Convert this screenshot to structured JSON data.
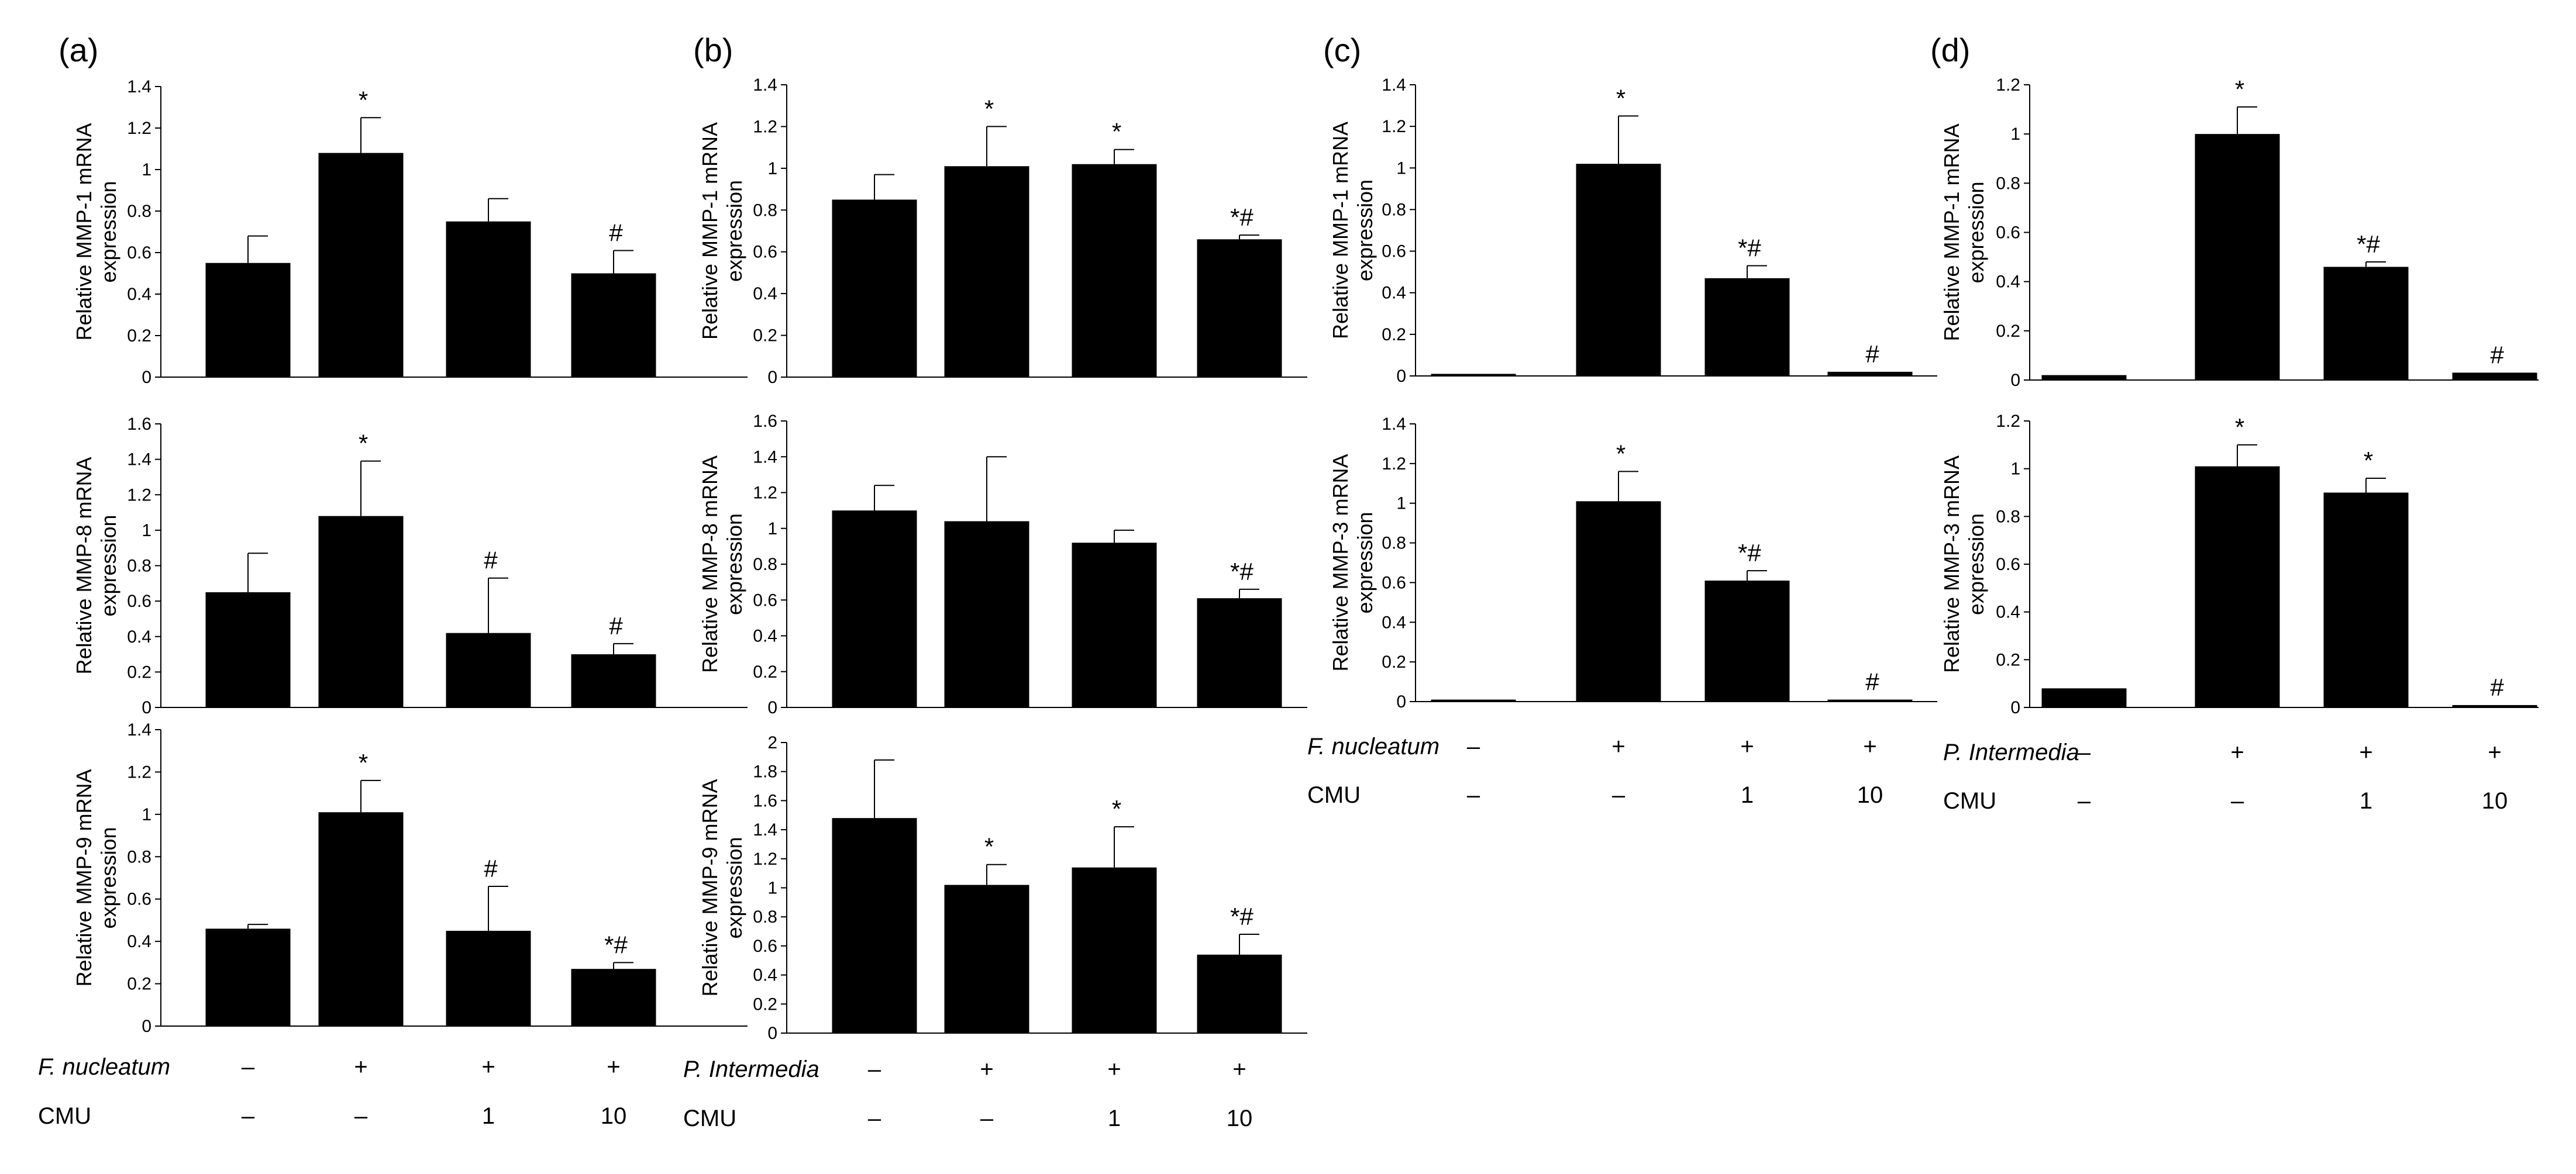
{
  "figure": {
    "panels": [
      {
        "label": "(a)",
        "treatment_label": "F. nucleatum",
        "treatment_values": [
          "–",
          "+",
          "+",
          "+"
        ],
        "cmu_label": "CMU",
        "cmu_values": [
          "–",
          "–",
          "1",
          "10"
        ]
      },
      {
        "label": "(b)",
        "treatment_label": "P. Intermedia",
        "treatment_values": [
          "–",
          "+",
          "+",
          "+"
        ],
        "cmu_label": "CMU",
        "cmu_values": [
          "–",
          "–",
          "1",
          "10"
        ]
      },
      {
        "label": "(c)",
        "treatment_label": "F. nucleatum",
        "treatment_values": [
          "–",
          "+",
          "+",
          "+"
        ],
        "cmu_label": "CMU",
        "cmu_values": [
          "–",
          "–",
          "1",
          "10"
        ]
      },
      {
        "label": "(d)",
        "treatment_label": "P. Intermedia",
        "treatment_values": [
          "–",
          "+",
          "+",
          "+"
        ],
        "cmu_label": "CMU",
        "cmu_values": [
          "–",
          "–",
          "1",
          "10"
        ]
      }
    ]
  },
  "chart_data": [
    {
      "panel": "(a)",
      "type": "bar",
      "ylabel": [
        "Relative MMP-1 mRNA",
        "expression"
      ],
      "ylim": [
        0,
        1.4
      ],
      "yticks": [
        "0",
        "0.2",
        "0.4",
        "0.6",
        "0.8",
        "1",
        "1.2",
        "1.4"
      ],
      "values": [
        0.55,
        1.08,
        0.75,
        0.5
      ],
      "errors": [
        0.13,
        0.17,
        0.11,
        0.11
      ],
      "annotations": [
        "",
        "*",
        "",
        "#"
      ]
    },
    {
      "panel": "(a)",
      "type": "bar",
      "ylabel": [
        "Relative MMP-8 mRNA",
        "expression"
      ],
      "ylim": [
        0,
        1.6
      ],
      "yticks": [
        "0",
        "0.2",
        "0.4",
        "0.6",
        "0.8",
        "1",
        "1.2",
        "1.4",
        "1.6"
      ],
      "values": [
        0.65,
        1.08,
        0.42,
        0.3
      ],
      "errors": [
        0.22,
        0.31,
        0.31,
        0.06
      ],
      "annotations": [
        "",
        "*",
        "#",
        "#"
      ]
    },
    {
      "panel": "(a)",
      "type": "bar",
      "ylabel": [
        "Relative MMP-9 mRNA",
        "expression"
      ],
      "ylim": [
        0,
        1.4
      ],
      "yticks": [
        "0",
        "0.2",
        "0.4",
        "0.6",
        "0.8",
        "1",
        "1.2",
        "1.4"
      ],
      "values": [
        0.46,
        1.01,
        0.45,
        0.27
      ],
      "errors": [
        0.02,
        0.15,
        0.21,
        0.03
      ],
      "annotations": [
        "",
        "*",
        "#",
        "*#"
      ]
    },
    {
      "panel": "(b)",
      "type": "bar",
      "ylabel": [
        "Relative MMP-1 mRNA",
        "expression"
      ],
      "ylim": [
        0,
        1.4
      ],
      "yticks": [
        "0",
        "0.2",
        "0.4",
        "0.6",
        "0.8",
        "1",
        "1.2",
        "1.4"
      ],
      "values": [
        0.85,
        1.01,
        1.02,
        0.66
      ],
      "errors": [
        0.12,
        0.19,
        0.07,
        0.02
      ],
      "annotations": [
        "",
        "*",
        "*",
        "*#"
      ]
    },
    {
      "panel": "(b)",
      "type": "bar",
      "ylabel": [
        "Relative MMP-8 mRNA",
        "expression"
      ],
      "ylim": [
        0,
        1.6
      ],
      "yticks": [
        "0",
        "0.2",
        "0.4",
        "0.6",
        "0.8",
        "1",
        "1.2",
        "1.4",
        "1.6"
      ],
      "values": [
        1.1,
        1.04,
        0.92,
        0.61
      ],
      "errors": [
        0.14,
        0.36,
        0.07,
        0.05
      ],
      "annotations": [
        "",
        "",
        "",
        "*#"
      ]
    },
    {
      "panel": "(b)",
      "type": "bar",
      "ylabel": [
        "Relative MMP-9 mRNA",
        "expression"
      ],
      "ylim": [
        0,
        2
      ],
      "yticks": [
        "0",
        "0.2",
        "0.4",
        "0.6",
        "0.8",
        "1",
        "1.2",
        "1.4",
        "1.6",
        "1.8",
        "2"
      ],
      "values": [
        1.48,
        1.02,
        1.14,
        0.54
      ],
      "errors": [
        0.4,
        0.14,
        0.28,
        0.14
      ],
      "annotations": [
        "",
        "*",
        "*",
        "*#"
      ]
    },
    {
      "panel": "(c)",
      "type": "bar",
      "ylabel": [
        "Relative MMP-1 mRNA",
        "expression"
      ],
      "ylim": [
        0,
        1.4
      ],
      "yticks": [
        "0",
        "0.2",
        "0.4",
        "0.6",
        "0.8",
        "1",
        "1.2",
        "1.4"
      ],
      "values": [
        0.01,
        1.02,
        0.47,
        0.02
      ],
      "errors": [
        0,
        0.23,
        0.06,
        0
      ],
      "annotations": [
        "",
        "*",
        "*#",
        "#"
      ]
    },
    {
      "panel": "(c)",
      "type": "bar",
      "ylabel": [
        "Relative MMP-3 mRNA",
        "expression"
      ],
      "ylim": [
        0,
        1.4
      ],
      "yticks": [
        "0",
        "0.2",
        "0.4",
        "0.6",
        "0.8",
        "1",
        "1.2",
        "1.4"
      ],
      "values": [
        0.01,
        1.01,
        0.61,
        0.01
      ],
      "errors": [
        0,
        0.15,
        0.05,
        0
      ],
      "annotations": [
        "",
        "*",
        "*#",
        "#"
      ]
    },
    {
      "panel": "(d)",
      "type": "bar",
      "ylabel": [
        "Relative MMP-1 mRNA",
        "expression"
      ],
      "ylim": [
        0,
        1.2
      ],
      "yticks": [
        "0",
        "0.2",
        "0.4",
        "0.6",
        "0.8",
        "1",
        "1.2"
      ],
      "values": [
        0.02,
        1.0,
        0.46,
        0.03
      ],
      "errors": [
        0,
        0.11,
        0.02,
        0
      ],
      "annotations": [
        "",
        "*",
        "*#",
        "#"
      ]
    },
    {
      "panel": "(d)",
      "type": "bar",
      "ylabel": [
        "Relative MMP-3 mRNA",
        "expression"
      ],
      "ylim": [
        0,
        1.2
      ],
      "yticks": [
        "0",
        "0.2",
        "0.4",
        "0.6",
        "0.8",
        "1",
        "1.2"
      ],
      "values": [
        0.08,
        1.01,
        0.9,
        0.01
      ],
      "errors": [
        0,
        0.09,
        0.06,
        0
      ],
      "annotations": [
        "",
        "*",
        "*",
        "#"
      ]
    }
  ]
}
